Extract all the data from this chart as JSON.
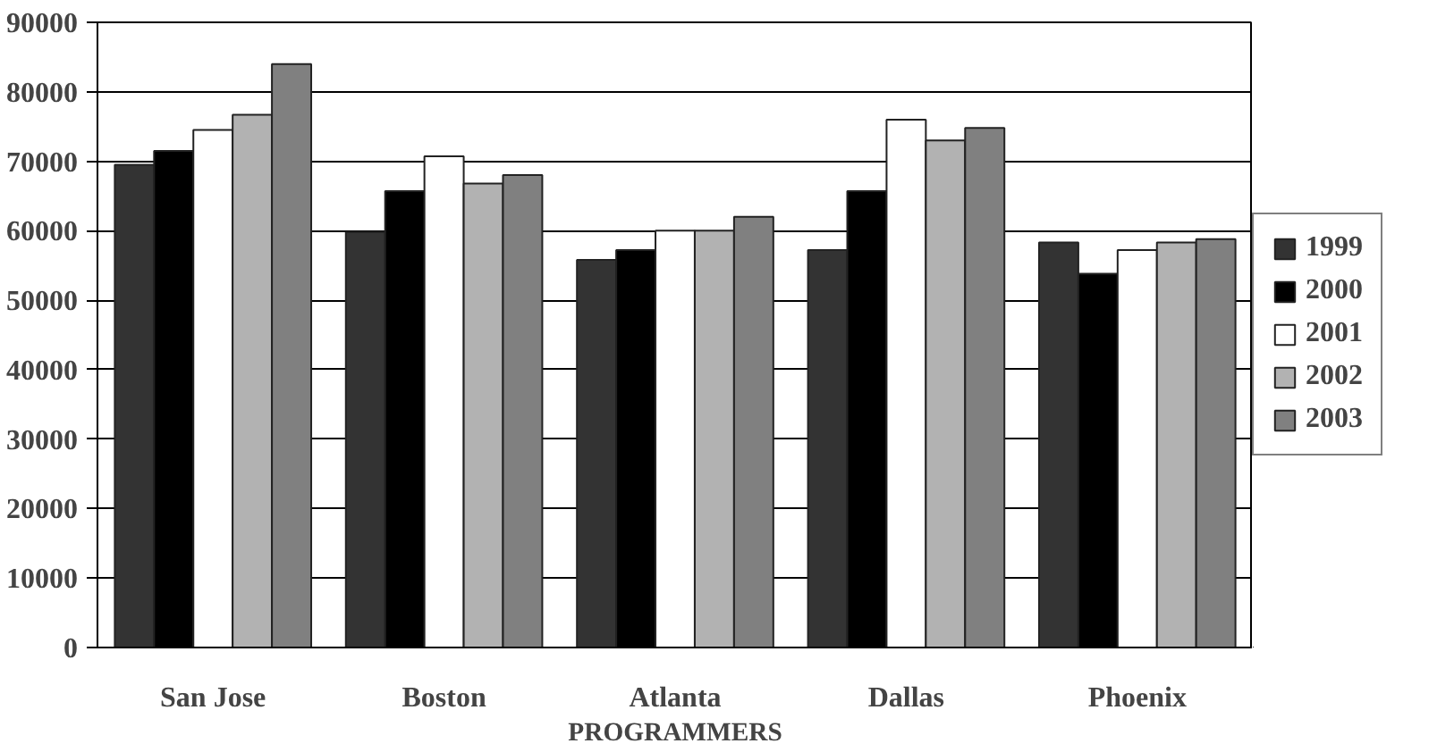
{
  "chart_data": {
    "type": "bar",
    "xlabel": "PROGRAMMERS",
    "categories": [
      "San Jose",
      "Boston",
      "Atlanta",
      "Dallas",
      "Phoenix"
    ],
    "series": [
      {
        "name": "1999",
        "color": "#333333",
        "values": [
          69500,
          59800,
          55800,
          57200,
          58300
        ]
      },
      {
        "name": "2000",
        "color": "#000000",
        "values": [
          71500,
          65700,
          57200,
          65700,
          53800
        ]
      },
      {
        "name": "2001",
        "color": "#ffffff",
        "values": [
          74500,
          70700,
          60000,
          76000,
          57200
        ]
      },
      {
        "name": "2002",
        "color": "#b2b2b2",
        "values": [
          76700,
          66800,
          60000,
          73000,
          58300
        ]
      },
      {
        "name": "2003",
        "color": "#808080",
        "values": [
          84000,
          68000,
          62000,
          74800,
          58800
        ]
      }
    ],
    "ylim": [
      0,
      90000
    ],
    "yticks": [
      0,
      10000,
      20000,
      30000,
      40000,
      50000,
      60000,
      70000,
      80000,
      90000
    ],
    "grid": "y",
    "legend": "right"
  }
}
